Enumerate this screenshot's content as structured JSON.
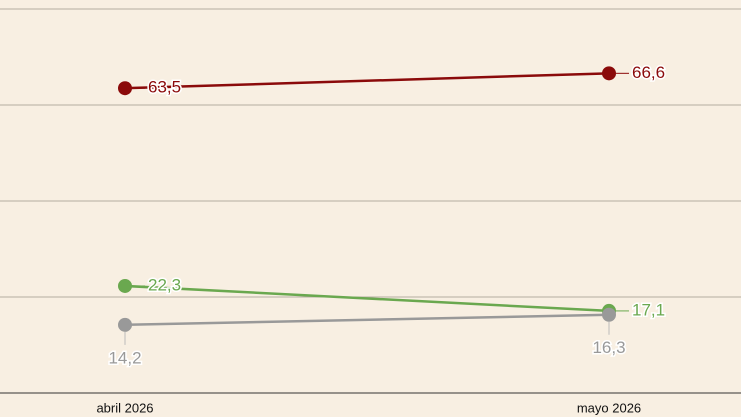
{
  "chart_data": {
    "type": "line",
    "categories": [
      "abril 2026",
      "mayo 2026"
    ],
    "series": [
      {
        "color": "#8b0a0a",
        "values": [
          63.5,
          66.6
        ],
        "value_labels": [
          "63,5",
          "66,6"
        ]
      },
      {
        "color": "#6aa84f",
        "values": [
          22.3,
          17.1
        ],
        "value_labels": [
          "22,3",
          "17,1"
        ]
      },
      {
        "color": "#999999",
        "values": [
          14.2,
          16.3
        ],
        "value_labels": [
          "14,2",
          "16,3"
        ]
      }
    ],
    "ylim": [
      0,
      80
    ],
    "yticks": [
      0,
      20,
      40,
      60,
      80
    ],
    "grid": true
  }
}
